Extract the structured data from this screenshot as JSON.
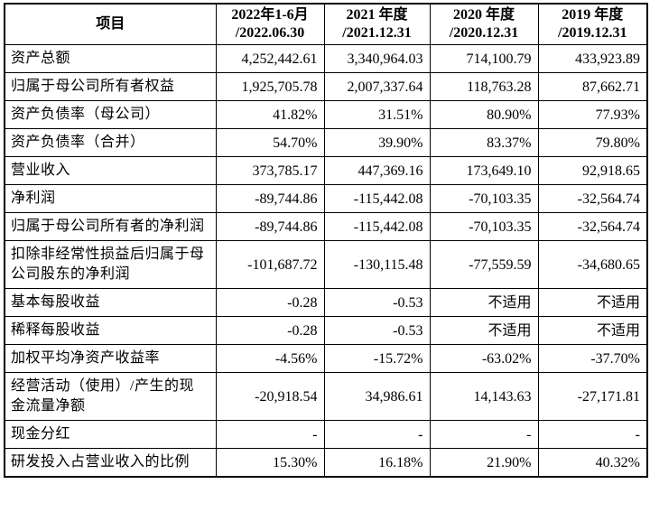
{
  "page": {
    "background_color": "#ffffff",
    "border_color": "#000000",
    "text_color": "#000000"
  },
  "table": {
    "header": {
      "item_label": "项目",
      "periods": [
        {
          "line1": "2022年1-6月",
          "line2": "/2022.06.30"
        },
        {
          "line1": "2021 年度",
          "line2": "/2021.12.31"
        },
        {
          "line1": "2020 年度",
          "line2": "/2020.12.31"
        },
        {
          "line1": "2019 年度",
          "line2": "/2019.12.31"
        }
      ]
    },
    "rows": [
      {
        "label": "资产总额",
        "values": [
          "4,252,442.61",
          "3,340,964.03",
          "714,100.79",
          "433,923.89"
        ]
      },
      {
        "label": "归属于母公司所有者权益",
        "values": [
          "1,925,705.78",
          "2,007,337.64",
          "118,763.28",
          "87,662.71"
        ]
      },
      {
        "label": "资产负债率（母公司）",
        "values": [
          "41.82%",
          "31.51%",
          "80.90%",
          "77.93%"
        ]
      },
      {
        "label": "资产负债率（合并）",
        "values": [
          "54.70%",
          "39.90%",
          "83.37%",
          "79.80%"
        ]
      },
      {
        "label": "营业收入",
        "values": [
          "373,785.17",
          "447,369.16",
          "173,649.10",
          "92,918.65"
        ]
      },
      {
        "label": "净利润",
        "values": [
          "-89,744.86",
          "-115,442.08",
          "-70,103.35",
          "-32,564.74"
        ]
      },
      {
        "label": "归属于母公司所有者的净利润",
        "values": [
          "-89,744.86",
          "-115,442.08",
          "-70,103.35",
          "-32,564.74"
        ]
      },
      {
        "label": "扣除非经常性损益后归属于母公司股东的净利润",
        "values": [
          "-101,687.72",
          "-130,115.48",
          "-77,559.59",
          "-34,680.65"
        ]
      },
      {
        "label": "基本每股收益",
        "values": [
          "-0.28",
          "-0.53",
          "不适用",
          "不适用"
        ]
      },
      {
        "label": "稀释每股收益",
        "values": [
          "-0.28",
          "-0.53",
          "不适用",
          "不适用"
        ]
      },
      {
        "label": "加权平均净资产收益率",
        "values": [
          "-4.56%",
          "-15.72%",
          "-63.02%",
          "-37.70%"
        ]
      },
      {
        "label": "经营活动（使用）/产生的现金流量净额",
        "values": [
          "-20,918.54",
          "34,986.61",
          "14,143.63",
          "-27,171.81"
        ]
      },
      {
        "label": "现金分红",
        "values": [
          "-",
          "-",
          "-",
          "-"
        ]
      },
      {
        "label": "研发投入占营业收入的比例",
        "values": [
          "15.30%",
          "16.18%",
          "21.90%",
          "40.32%"
        ]
      }
    ]
  },
  "chart_data": {
    "type": "table",
    "title": "",
    "columns": [
      "项目",
      "2022年1-6月/2022.06.30",
      "2021 年度/2021.12.31",
      "2020 年度/2020.12.31",
      "2019 年度/2019.12.31"
    ],
    "rows": [
      [
        "资产总额",
        "4,252,442.61",
        "3,340,964.03",
        "714,100.79",
        "433,923.89"
      ],
      [
        "归属于母公司所有者权益",
        "1,925,705.78",
        "2,007,337.64",
        "118,763.28",
        "87,662.71"
      ],
      [
        "资产负债率（母公司）",
        "41.82%",
        "31.51%",
        "80.90%",
        "77.93%"
      ],
      [
        "资产负债率（合并）",
        "54.70%",
        "39.90%",
        "83.37%",
        "79.80%"
      ],
      [
        "营业收入",
        "373,785.17",
        "447,369.16",
        "173,649.10",
        "92,918.65"
      ],
      [
        "净利润",
        "-89,744.86",
        "-115,442.08",
        "-70,103.35",
        "-32,564.74"
      ],
      [
        "归属于母公司所有者的净利润",
        "-89,744.86",
        "-115,442.08",
        "-70,103.35",
        "-32,564.74"
      ],
      [
        "扣除非经常性损益后归属于母公司股东的净利润",
        "-101,687.72",
        "-130,115.48",
        "-77,559.59",
        "-34,680.65"
      ],
      [
        "基本每股收益",
        "-0.28",
        "-0.53",
        "不适用",
        "不适用"
      ],
      [
        "稀释每股收益",
        "-0.28",
        "-0.53",
        "不适用",
        "不适用"
      ],
      [
        "加权平均净资产收益率",
        "-4.56%",
        "-15.72%",
        "-63.02%",
        "-37.70%"
      ],
      [
        "经营活动（使用）/产生的现金流量净额",
        "-20,918.54",
        "34,986.61",
        "14,143.63",
        "-27,171.81"
      ],
      [
        "现金分红",
        "-",
        "-",
        "-",
        "-"
      ],
      [
        "研发投入占营业收入的比例",
        "15.30%",
        "16.18%",
        "21.90%",
        "40.32%"
      ]
    ]
  }
}
